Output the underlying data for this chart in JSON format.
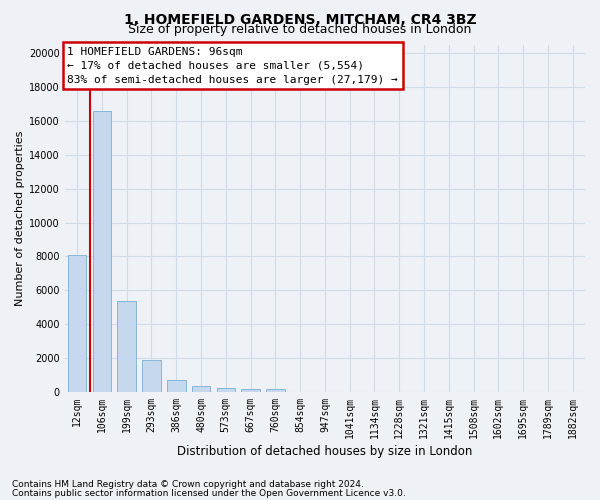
{
  "title1": "1, HOMEFIELD GARDENS, MITCHAM, CR4 3BZ",
  "title2": "Size of property relative to detached houses in London",
  "xlabel": "Distribution of detached houses by size in London",
  "ylabel": "Number of detached properties",
  "bar_labels": [
    "12sqm",
    "106sqm",
    "199sqm",
    "293sqm",
    "386sqm",
    "480sqm",
    "573sqm",
    "667sqm",
    "760sqm",
    "854sqm",
    "947sqm",
    "1041sqm",
    "1134sqm",
    "1228sqm",
    "1321sqm",
    "1415sqm",
    "1508sqm",
    "1602sqm",
    "1695sqm",
    "1789sqm",
    "1882sqm"
  ],
  "bar_values": [
    8050,
    16600,
    5350,
    1870,
    700,
    320,
    220,
    180,
    145,
    0,
    0,
    0,
    0,
    0,
    0,
    0,
    0,
    0,
    0,
    0,
    0
  ],
  "bar_color": "#c5d8ed",
  "bar_edge_color": "#7aafd4",
  "vline_color": "#cc0000",
  "vline_x": 0.5,
  "annotation_title": "1 HOMEFIELD GARDENS: 96sqm",
  "annotation_line1": "← 17% of detached houses are smaller (5,554)",
  "annotation_line2": "83% of semi-detached houses are larger (27,179) →",
  "annotation_box_edge_color": "#cc0000",
  "ylim": [
    0,
    20500
  ],
  "yticks": [
    0,
    2000,
    4000,
    6000,
    8000,
    10000,
    12000,
    14000,
    16000,
    18000,
    20000
  ],
  "footnote1": "Contains HM Land Registry data © Crown copyright and database right 2024.",
  "footnote2": "Contains public sector information licensed under the Open Government Licence v3.0.",
  "background_color": "#eef2f7",
  "grid_color": "#d0dce8",
  "title_fontsize": 10,
  "subtitle_fontsize": 9,
  "annot_fontsize": 8,
  "tick_fontsize": 7,
  "ylabel_fontsize": 8,
  "xlabel_fontsize": 8.5,
  "footnote_fontsize": 6.5
}
